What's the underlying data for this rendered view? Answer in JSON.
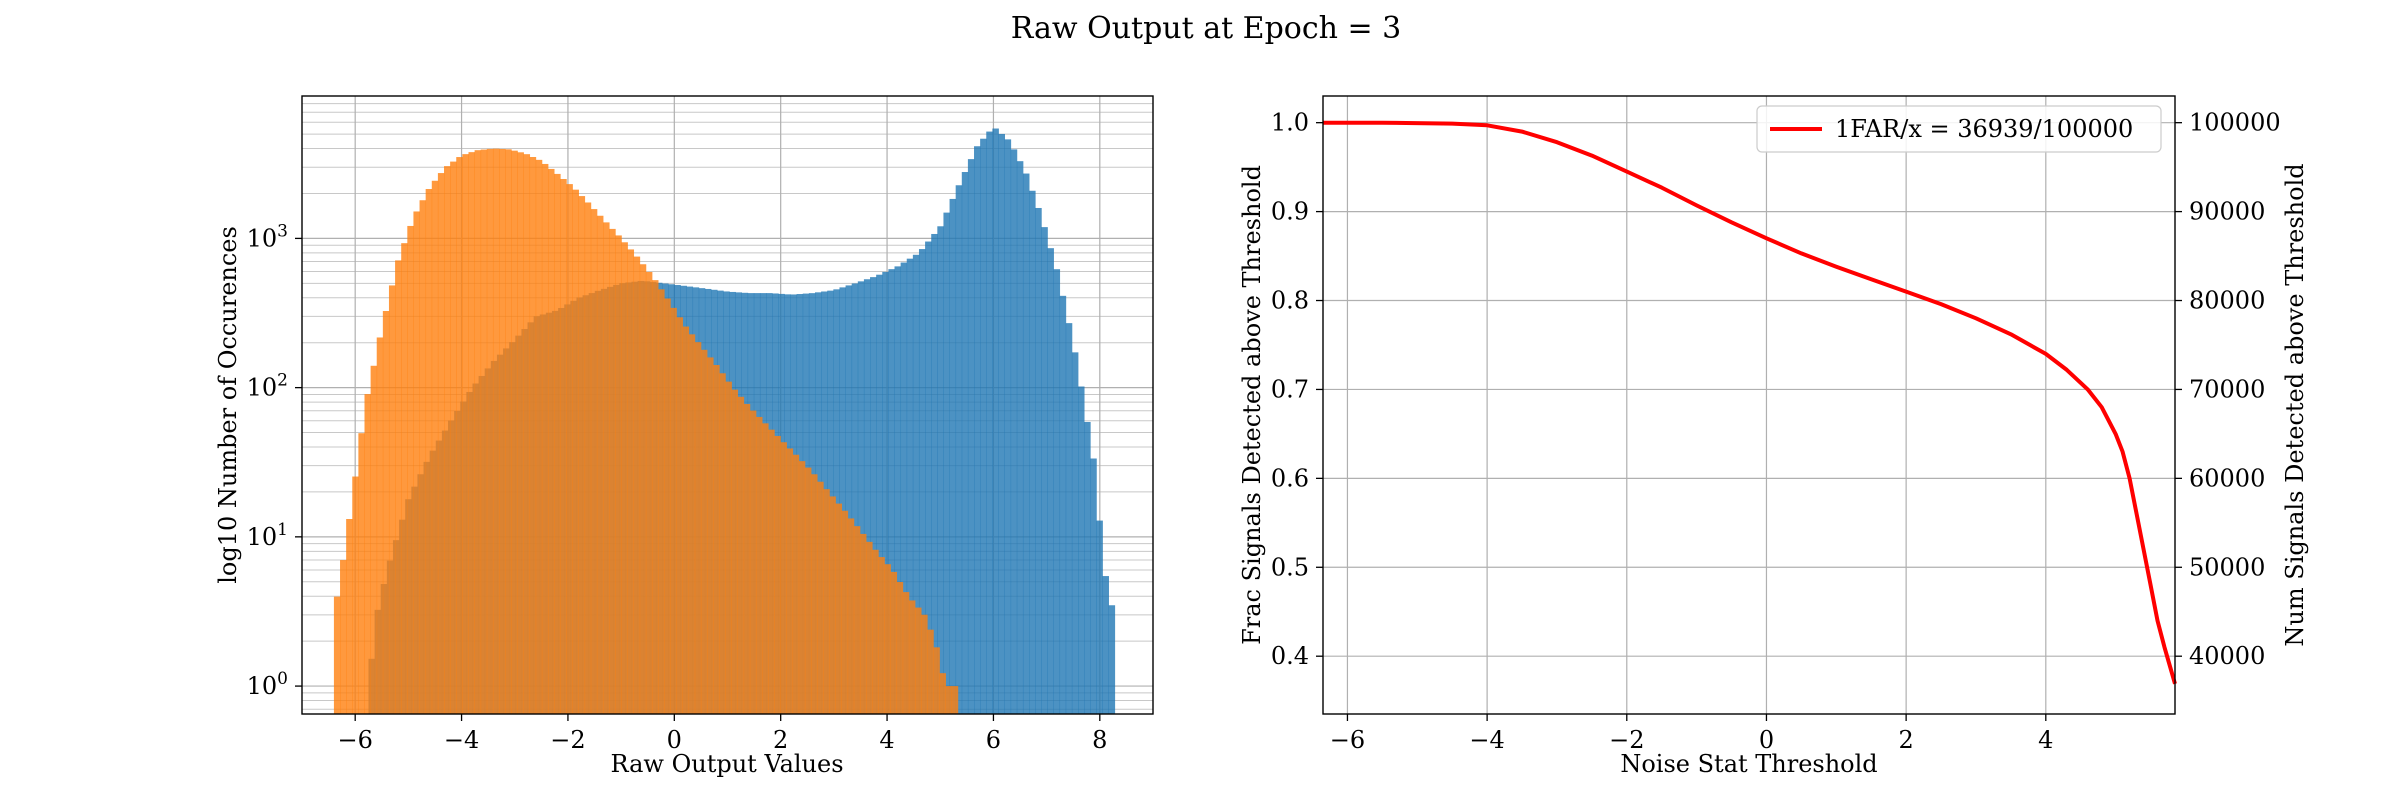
{
  "figure": {
    "suptitle": "Raw Output at Epoch = 3"
  },
  "chart_data": [
    {
      "type": "bar",
      "subtype": "histogram",
      "title": "",
      "xlabel": "Raw Output Values",
      "ylabel": "log10 Number of Occurences",
      "xlim": [
        -7.0,
        9.0
      ],
      "ylim": [
        0.65,
        9000
      ],
      "y_scale": "log",
      "grid": "major and minor",
      "xticks": [
        -6,
        -4,
        -2,
        0,
        2,
        4,
        6,
        8
      ],
      "xtick_labels": [
        "−6",
        "−4",
        "−2",
        "0",
        "2",
        "4",
        "6",
        "8"
      ],
      "yticks": [
        1,
        10,
        100,
        1000
      ],
      "ytick_labels": [
        "10^0",
        "10^1",
        "10^2",
        "10^3"
      ],
      "series": [
        {
          "color": "#1f77b4",
          "opacity": 0.8,
          "anchors": [
            [
              -5.75,
              1
            ],
            [
              -5.6,
              3
            ],
            [
              -5.4,
              6
            ],
            [
              -5.0,
              18
            ],
            [
              -4.6,
              35
            ],
            [
              -4.2,
              60
            ],
            [
              -3.8,
              100
            ],
            [
              -3.4,
              150
            ],
            [
              -3.0,
              210
            ],
            [
              -2.6,
              300
            ],
            [
              -2.2,
              330
            ],
            [
              -1.8,
              400
            ],
            [
              -1.4,
              450
            ],
            [
              -1.0,
              500
            ],
            [
              -0.6,
              520
            ],
            [
              -0.2,
              500
            ],
            [
              0.2,
              480
            ],
            [
              0.6,
              460
            ],
            [
              1.0,
              440
            ],
            [
              1.4,
              430
            ],
            [
              1.8,
              430
            ],
            [
              2.2,
              420
            ],
            [
              2.6,
              430
            ],
            [
              3.0,
              450
            ],
            [
              3.4,
              500
            ],
            [
              3.8,
              560
            ],
            [
              4.2,
              650
            ],
            [
              4.6,
              800
            ],
            [
              5.0,
              1200
            ],
            [
              5.4,
              2500
            ],
            [
              5.7,
              4200
            ],
            [
              6.0,
              5600
            ],
            [
              6.3,
              4500
            ],
            [
              6.6,
              2800
            ],
            [
              6.9,
              1400
            ],
            [
              7.2,
              600
            ],
            [
              7.5,
              200
            ],
            [
              7.7,
              80
            ],
            [
              7.9,
              30
            ],
            [
              8.0,
              12
            ],
            [
              8.15,
              4
            ],
            [
              8.3,
              3
            ]
          ]
        },
        {
          "color": "#ff7f0e",
          "opacity": 0.8,
          "anchors": [
            [
              -6.4,
              3
            ],
            [
              -6.2,
              8
            ],
            [
              -6.0,
              25
            ],
            [
              -5.8,
              80
            ],
            [
              -5.5,
              250
            ],
            [
              -5.2,
              700
            ],
            [
              -4.9,
              1400
            ],
            [
              -4.6,
              2200
            ],
            [
              -4.3,
              3000
            ],
            [
              -4.0,
              3600
            ],
            [
              -3.7,
              3900
            ],
            [
              -3.4,
              4000
            ],
            [
              -3.1,
              3950
            ],
            [
              -2.8,
              3700
            ],
            [
              -2.5,
              3300
            ],
            [
              -2.2,
              2700
            ],
            [
              -1.9,
              2200
            ],
            [
              -1.6,
              1700
            ],
            [
              -1.3,
              1300
            ],
            [
              -1.0,
              1000
            ],
            [
              -0.7,
              750
            ],
            [
              -0.4,
              550
            ],
            [
              -0.1,
              380
            ],
            [
              0.2,
              260
            ],
            [
              0.5,
              190
            ],
            [
              0.8,
              140
            ],
            [
              1.1,
              100
            ],
            [
              1.4,
              75
            ],
            [
              1.7,
              58
            ],
            [
              2.0,
              45
            ],
            [
              2.3,
              35
            ],
            [
              2.6,
              27
            ],
            [
              2.9,
              20
            ],
            [
              3.2,
              15
            ],
            [
              3.5,
              11
            ],
            [
              3.8,
              8
            ],
            [
              4.1,
              6
            ],
            [
              4.4,
              4
            ],
            [
              4.7,
              3
            ],
            [
              4.9,
              2
            ],
            [
              5.1,
              1
            ],
            [
              5.3,
              1
            ]
          ]
        }
      ]
    },
    {
      "type": "line",
      "title": "",
      "xlabel": "Noise Stat Threshold",
      "ylabel": "Frac Signals Detected above Threshold",
      "ylabel_right": "Num Signals Detected above Threshold",
      "xlim": [
        -6.35,
        5.85
      ],
      "ylim": [
        0.335,
        1.03
      ],
      "ylim_right": [
        33500,
        103000
      ],
      "grid": "major",
      "legend": "top-right",
      "xticks": [
        -6,
        -4,
        -2,
        0,
        2,
        4
      ],
      "xtick_labels": [
        "−6",
        "−4",
        "−2",
        "0",
        "2",
        "4"
      ],
      "yticks": [
        0.4,
        0.5,
        0.6,
        0.7,
        0.8,
        0.9,
        1.0
      ],
      "ytick_labels": [
        "0.4",
        "0.5",
        "0.6",
        "0.7",
        "0.8",
        "0.9",
        "1.0"
      ],
      "yticks_right": [
        40000,
        50000,
        60000,
        70000,
        80000,
        90000,
        100000
      ],
      "ytick_labels_right": [
        "40000",
        "50000",
        "60000",
        "70000",
        "80000",
        "90000",
        "100000"
      ],
      "series": [
        {
          "name": "1FAR/x = 36939/100000",
          "color": "#ff0000",
          "x": [
            -6.35,
            -5.5,
            -4.5,
            -4.0,
            -3.5,
            -3.0,
            -2.5,
            -2.0,
            -1.5,
            -1.0,
            -0.5,
            0.0,
            0.5,
            1.0,
            1.5,
            2.0,
            2.5,
            3.0,
            3.5,
            4.0,
            4.3,
            4.6,
            4.8,
            5.0,
            5.1,
            5.2,
            5.3,
            5.4,
            5.5,
            5.6,
            5.7,
            5.85
          ],
          "y": [
            1.0,
            1.0,
            0.999,
            0.997,
            0.99,
            0.978,
            0.963,
            0.945,
            0.927,
            0.907,
            0.888,
            0.87,
            0.853,
            0.838,
            0.824,
            0.81,
            0.796,
            0.78,
            0.762,
            0.74,
            0.722,
            0.7,
            0.68,
            0.65,
            0.63,
            0.6,
            0.56,
            0.52,
            0.48,
            0.44,
            0.41,
            0.369
          ]
        }
      ]
    }
  ]
}
